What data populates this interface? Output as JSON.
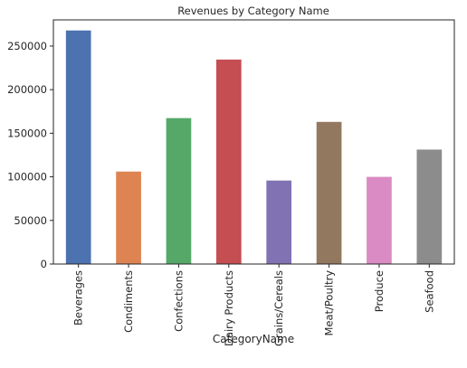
{
  "chart_data": {
    "type": "bar",
    "title": "Revenues by Category Name",
    "xlabel": "CategoryName",
    "ylabel": "",
    "categories": [
      "Beverages",
      "Condiments",
      "Confections",
      "Dairy Products",
      "Grains/Cereals",
      "Meat/Poultry",
      "Produce",
      "Seafood"
    ],
    "values": [
      267868,
      106047,
      167357,
      234507,
      95744,
      163022,
      99985,
      131261
    ],
    "colors": [
      "#4c72b0",
      "#dd8452",
      "#55a868",
      "#c44e52",
      "#8172b3",
      "#937860",
      "#da8bc3",
      "#8c8c8c"
    ],
    "ylim": [
      0,
      280000
    ],
    "yticks": [
      0,
      50000,
      100000,
      150000,
      200000,
      250000
    ],
    "ytick_labels": [
      "0",
      "50000",
      "100000",
      "150000",
      "200000",
      "250000"
    ],
    "grid": false,
    "legend": "none"
  }
}
